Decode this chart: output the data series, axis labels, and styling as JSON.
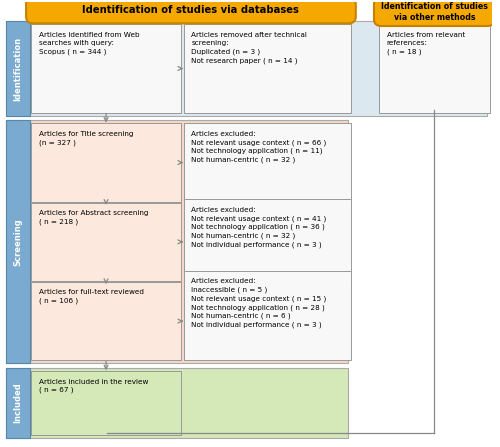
{
  "title_db": "Identification of studies via databases",
  "title_other": "Identification of studies\nvia other methods",
  "box_id_left": "Articles identified from Web\nsearches with query:\nScopus ( n = 344 )",
  "box_id_mid": "Articles removed after technical\nscreening:\nDuplicated (n = 3 )\nNot research paper ( n = 14 )",
  "box_id_right": "Articles from relevant\nreferences:\n( n = 18 )",
  "box_s1_left": "Articles for Title screening\n(n = 327 )",
  "box_s1_right": "Articles excluded:\nNot relevant usage context ( n = 66 )\nNot technology application ( n = 11)\nNot human-centric ( n = 32 )",
  "box_s2_left": "Articles for Abstract screening\n( n = 218 )",
  "box_s2_right": "Articles excluded:\nNot relevant usage context ( n = 41 )\nNot technology application ( n = 36 )\nNot human-centric ( n = 32 )\nNot individual performance ( n = 3 )",
  "box_s3_left": "Articles for full-text reviewed\n( n = 106 )",
  "box_s3_right": "Articles excluded:\nInaccessible ( n = 5 )\nNot relevant usage context ( n = 15 )\nNot technology application ( n = 28 )\nNot human-centric ( n = 6 )\nNot individual performance ( n = 3 )",
  "box_included": "Articles included in the review\n( n = 67 )",
  "label_identification": "Identification",
  "label_screening": "Screening",
  "label_included": "Included",
  "color_header": "#f5a800",
  "color_header_border": "#c88000",
  "color_id_band": "#dce8f0",
  "color_screen_band": "#f5d8c8",
  "color_included_band": "#d5e8b8",
  "color_tab": "#7aaad0",
  "color_box_white": "#f8f8f8",
  "color_box_screen": "#fce8dc",
  "color_box_included": "#d5e8b8",
  "color_box_border": "#999999",
  "color_arrow": "#888888",
  "font_size_content": 5.2,
  "font_size_header": 7.2,
  "font_size_label": 6.0
}
